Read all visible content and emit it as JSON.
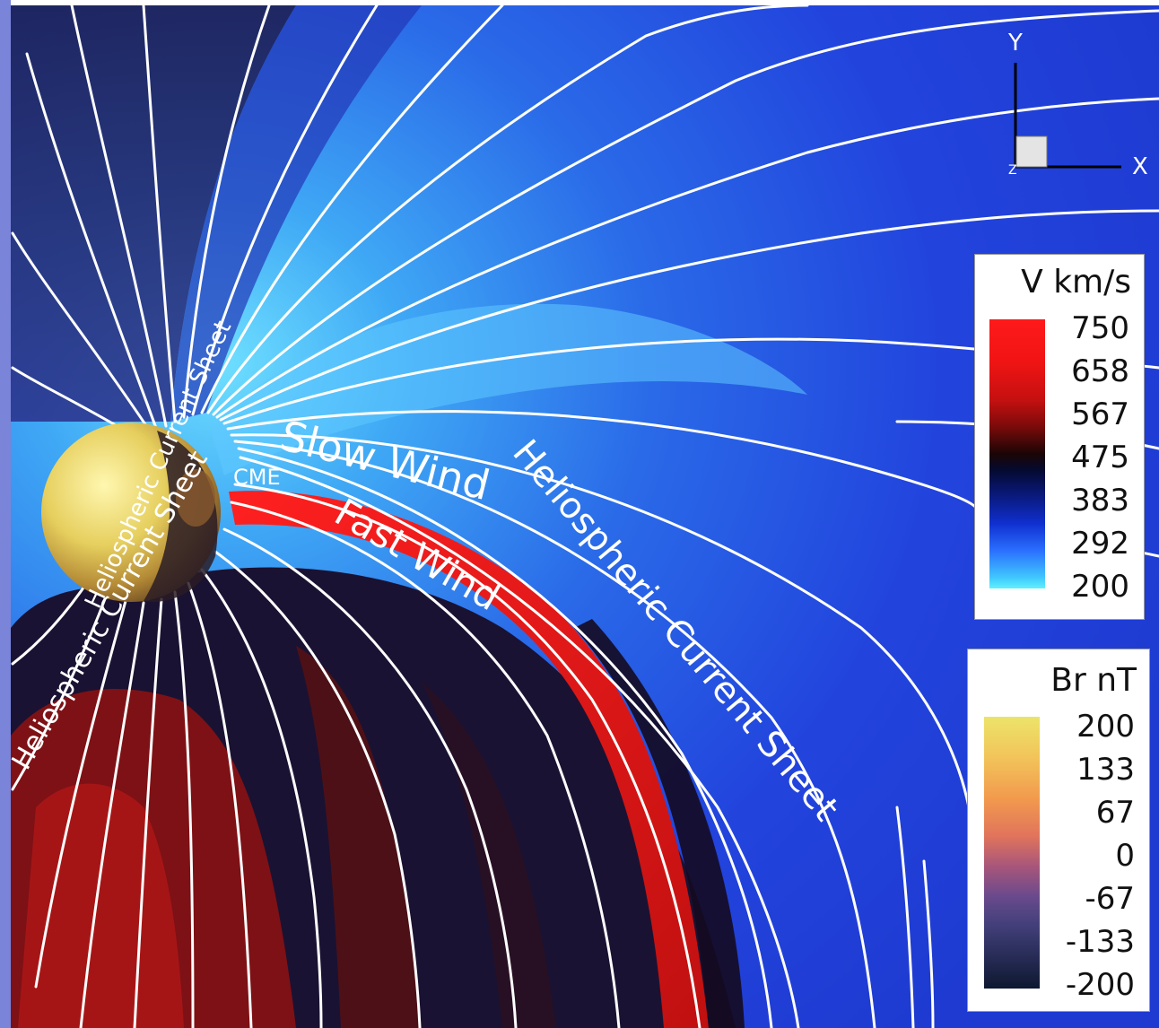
{
  "annotations": {
    "slow_wind": "Slow Wind",
    "fast_wind": "Fast Wind",
    "cme": "CME",
    "hcs_right": "Heliospheric Current Sheet",
    "hcs_sun": "Heliospheric Current Sheet",
    "hcs_left": "Heliospheric Current Sheet"
  },
  "axes": {
    "y_label": "Y",
    "x_label": "X",
    "z_label": "Z"
  },
  "legend_velocity": {
    "title": "V km/s",
    "ticks": [
      "750",
      "658",
      "567",
      "475",
      "383",
      "292",
      "200"
    ]
  },
  "legend_br": {
    "title": "Br nT",
    "ticks": [
      "200",
      "133",
      "67",
      "0",
      "-67",
      "-133",
      "-200"
    ]
  },
  "colors": {
    "background_blue": "#2244dd",
    "fast_wind_red": "#e01818",
    "dark_band": "#1a1030",
    "streamline": "#ffffff",
    "sun": "#e8d86a"
  }
}
